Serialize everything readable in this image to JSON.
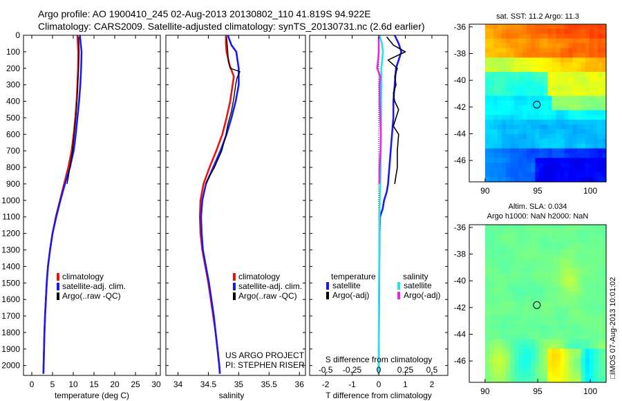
{
  "header": {
    "line1": "Argo profile: AO 1900410_245 02-Aug-2013 20130802_110 41.819S 94.922E",
    "line2": "Climatology: CARS2009. Satellite-adjusted climatology: synTS_20130731.nc (2.6d earlier)"
  },
  "footer": {
    "project": "US ARGO PROJECT",
    "pi": "PI: STEPHEN RISER",
    "credit": "□IMOS 07-Aug-2013 10:01:02"
  },
  "colors": {
    "climatology": "#ee1111",
    "satellite": "#1a1aee",
    "argo": "#000000",
    "salinity_satellite": "#22e5e5",
    "salinity_argo": "#ee22ee"
  },
  "chart_data": [
    {
      "id": "temperature",
      "type": "line",
      "xlabel": "temperature (deg C)",
      "ylabel": "",
      "xlim": [
        -2,
        31
      ],
      "ylim": [
        2060,
        0
      ],
      "xticks": [
        0,
        5,
        10,
        15,
        20,
        25,
        30
      ],
      "yticks": [
        0,
        100,
        200,
        300,
        400,
        500,
        600,
        700,
        800,
        900,
        1000,
        1100,
        1200,
        1300,
        1400,
        1500,
        1600,
        1700,
        1800,
        1900,
        2000
      ],
      "legend": {
        "placement": "lower-right",
        "entries": [
          {
            "label": "climatology",
            "color": "#ee1111"
          },
          {
            "label": "satellite-adj. clim.",
            "color": "#1a1aee"
          },
          {
            "label": "Argo(..raw -QC)",
            "color": "#000000"
          }
        ]
      },
      "series": [
        {
          "name": "climatology",
          "color": "#ee1111",
          "width": 2.6,
          "points": [
            [
              11.0,
              0
            ],
            [
              11.1,
              50
            ],
            [
              11.2,
              100
            ],
            [
              11.15,
              200
            ],
            [
              11.0,
              300
            ],
            [
              10.8,
              400
            ],
            [
              10.5,
              500
            ],
            [
              10.1,
              600
            ],
            [
              9.6,
              700
            ],
            [
              8.8,
              800
            ],
            [
              7.8,
              900
            ],
            [
              6.8,
              1000
            ],
            [
              5.8,
              1100
            ],
            [
              5.0,
              1200
            ],
            [
              4.4,
              1300
            ],
            [
              3.9,
              1400
            ],
            [
              3.6,
              1500
            ],
            [
              3.4,
              1600
            ],
            [
              3.2,
              1700
            ],
            [
              3.05,
              1800
            ],
            [
              2.95,
              1900
            ],
            [
              2.85,
              2000
            ],
            [
              2.8,
              2050
            ]
          ]
        },
        {
          "name": "satellite-adj. clim.",
          "color": "#1a1aee",
          "width": 2.6,
          "points": [
            [
              11.6,
              0
            ],
            [
              11.8,
              50
            ],
            [
              12.0,
              100
            ],
            [
              11.9,
              200
            ],
            [
              11.7,
              300
            ],
            [
              11.4,
              400
            ],
            [
              11.0,
              500
            ],
            [
              10.6,
              600
            ],
            [
              10.1,
              700
            ],
            [
              9.2,
              800
            ],
            [
              8.0,
              900
            ],
            [
              6.9,
              1000
            ],
            [
              5.9,
              1100
            ],
            [
              5.0,
              1200
            ],
            [
              4.4,
              1300
            ],
            [
              3.9,
              1400
            ],
            [
              3.6,
              1500
            ],
            [
              3.4,
              1600
            ],
            [
              3.2,
              1700
            ],
            [
              3.05,
              1800
            ],
            [
              2.95,
              1900
            ],
            [
              2.85,
              2000
            ],
            [
              2.8,
              2050
            ]
          ]
        },
        {
          "name": "Argo(..raw -QC)",
          "color": "#000000",
          "width": 1.4,
          "points": [
            [
              11.3,
              10
            ],
            [
              11.4,
              100
            ],
            [
              11.3,
              200
            ],
            [
              11.1,
              300
            ],
            [
              10.9,
              400
            ],
            [
              10.6,
              500
            ],
            [
              10.2,
              600
            ],
            [
              9.8,
              700
            ],
            [
              9.3,
              780
            ],
            [
              8.8,
              860
            ],
            [
              8.5,
              900
            ]
          ]
        }
      ]
    },
    {
      "id": "salinity",
      "type": "line",
      "xlabel": "salinity",
      "ylabel": "",
      "xlim": [
        33.8,
        36.1
      ],
      "ylim": [
        2060,
        0
      ],
      "xticks": [
        34,
        34.5,
        35,
        35.5,
        36
      ],
      "xticklabels": [
        "34",
        "34.5",
        "35",
        "35.5",
        "36"
      ],
      "legend": {
        "placement": "lower-right",
        "entries": [
          {
            "label": "climatology",
            "color": "#ee1111"
          },
          {
            "label": "satellite-adj. clim.",
            "color": "#1a1aee"
          },
          {
            "label": "Argo(..raw -QC)",
            "color": "#000000"
          }
        ]
      },
      "series": [
        {
          "name": "climatology",
          "color": "#ee1111",
          "width": 2.6,
          "points": [
            [
              34.79,
              0
            ],
            [
              34.79,
              50
            ],
            [
              34.8,
              100
            ],
            [
              34.85,
              180
            ],
            [
              34.92,
              250
            ],
            [
              34.9,
              300
            ],
            [
              34.86,
              400
            ],
            [
              34.8,
              500
            ],
            [
              34.73,
              600
            ],
            [
              34.63,
              700
            ],
            [
              34.52,
              800
            ],
            [
              34.42,
              900
            ],
            [
              34.37,
              1000
            ],
            [
              34.36,
              1100
            ],
            [
              34.37,
              1200
            ],
            [
              34.4,
              1300
            ],
            [
              34.45,
              1400
            ],
            [
              34.5,
              1500
            ],
            [
              34.54,
              1600
            ],
            [
              34.58,
              1700
            ],
            [
              34.62,
              1800
            ],
            [
              34.65,
              1900
            ],
            [
              34.68,
              2000
            ],
            [
              34.69,
              2050
            ]
          ]
        },
        {
          "name": "satellite-adj. clim.",
          "color": "#1a1aee",
          "width": 2.6,
          "points": [
            [
              34.82,
              0
            ],
            [
              34.88,
              60
            ],
            [
              34.96,
              100
            ],
            [
              34.98,
              150
            ],
            [
              35.0,
              200
            ],
            [
              35.0,
              300
            ],
            [
              34.95,
              400
            ],
            [
              34.88,
              500
            ],
            [
              34.8,
              600
            ],
            [
              34.7,
              700
            ],
            [
              34.58,
              800
            ],
            [
              34.46,
              900
            ],
            [
              34.4,
              1000
            ],
            [
              34.38,
              1100
            ],
            [
              34.39,
              1200
            ],
            [
              34.41,
              1300
            ],
            [
              34.46,
              1400
            ],
            [
              34.51,
              1500
            ],
            [
              34.55,
              1600
            ],
            [
              34.59,
              1700
            ],
            [
              34.62,
              1800
            ],
            [
              34.65,
              1900
            ],
            [
              34.68,
              2000
            ],
            [
              34.69,
              2050
            ]
          ]
        },
        {
          "name": "Argo(..raw -QC)",
          "color": "#000000",
          "width": 1.4,
          "points": [
            [
              34.8,
              10
            ],
            [
              34.82,
              100
            ],
            [
              34.83,
              160
            ],
            [
              34.86,
              200
            ],
            [
              35.02,
              220
            ],
            [
              34.97,
              260
            ],
            [
              34.95,
              300
            ],
            [
              34.92,
              380
            ],
            [
              34.88,
              460
            ],
            [
              34.82,
              540
            ],
            [
              34.78,
              620
            ],
            [
              34.72,
              700
            ],
            [
              34.6,
              800
            ],
            [
              34.48,
              880
            ],
            [
              34.46,
              900
            ]
          ]
        }
      ]
    },
    {
      "id": "difference",
      "type": "line",
      "xlabel": "T difference from climatology",
      "ylabel": "",
      "secondary_xlabel": "S difference from climatology",
      "xlim": [
        -2.6,
        2.6
      ],
      "ylim": [
        2060,
        0
      ],
      "xticks": [
        -2,
        -1,
        0,
        1,
        2
      ],
      "xticklabels": [
        "-2",
        "-1",
        "0",
        "1",
        "2"
      ],
      "sticks": [
        -0.5,
        -0.25,
        0,
        0.25,
        0.5
      ],
      "sticklabels": [
        "-0.5",
        "-0.25",
        "0",
        "0.25",
        "0.5"
      ],
      "legend": {
        "placement": "lower-center",
        "header_t": "temperature",
        "header_s": "salinity",
        "entries": [
          {
            "label": "satellite",
            "color": "#1a1aee"
          },
          {
            "label": "Argo(-adj)",
            "color": "#000000"
          },
          {
            "label": "satellite",
            "color": "#22e5e5"
          },
          {
            "label": "Argo(-adj)",
            "color": "#ee22ee"
          }
        ]
      },
      "series": [
        {
          "name": "temperature satellite",
          "color": "#1a1aee",
          "width": 2.6,
          "points": [
            [
              0.6,
              0
            ],
            [
              0.75,
              50
            ],
            [
              0.85,
              100
            ],
            [
              0.65,
              200
            ],
            [
              0.6,
              300
            ],
            [
              0.55,
              400
            ],
            [
              0.55,
              500
            ],
            [
              0.5,
              600
            ],
            [
              0.45,
              700
            ],
            [
              0.4,
              800
            ],
            [
              0.35,
              900
            ],
            [
              0.3,
              950
            ],
            [
              0.2,
              1000
            ],
            [
              0.15,
              1050
            ],
            [
              0.05,
              1100
            ],
            [
              0.03,
              1200
            ],
            [
              0.02,
              1400
            ],
            [
              0.01,
              1700
            ],
            [
              0.0,
              2050
            ]
          ]
        },
        {
          "name": "temperature Argo(-adj)",
          "color": "#000000",
          "width": 1.6,
          "points": [
            [
              0.3,
              10
            ],
            [
              0.55,
              60
            ],
            [
              1.0,
              100
            ],
            [
              0.35,
              150
            ],
            [
              0.7,
              200
            ],
            [
              0.6,
              250
            ],
            [
              0.65,
              300
            ],
            [
              0.55,
              350
            ],
            [
              0.6,
              400
            ],
            [
              0.75,
              450
            ],
            [
              0.65,
              500
            ],
            [
              0.55,
              550
            ],
            [
              0.75,
              600
            ],
            [
              0.7,
              700
            ],
            [
              0.7,
              800
            ],
            [
              0.65,
              850
            ],
            [
              0.6,
              900
            ]
          ]
        },
        {
          "name": "salinity satellite",
          "color": "#22e5e5",
          "width": 2.6,
          "points": [
            [
              0.03,
              0
            ],
            [
              0.12,
              50
            ],
            [
              0.16,
              100
            ],
            [
              0.1,
              200
            ],
            [
              0.1,
              300
            ],
            [
              0.09,
              400
            ],
            [
              0.09,
              500
            ],
            [
              0.08,
              600
            ],
            [
              0.07,
              700
            ],
            [
              0.07,
              800
            ],
            [
              0.06,
              900
            ],
            [
              0.04,
              1000
            ],
            [
              0.03,
              1100
            ],
            [
              0.02,
              1300
            ],
            [
              0.01,
              1600
            ],
            [
              0.0,
              2050
            ]
          ]
        },
        {
          "name": "salinity Argo(-adj)",
          "color": "#ee22ee",
          "width": 2.6,
          "points": [
            [
              0.0,
              10
            ],
            [
              0.0,
              100
            ],
            [
              -0.02,
              150
            ],
            [
              -0.06,
              200
            ],
            [
              -0.01,
              220
            ],
            [
              0.06,
              250
            ],
            [
              0.03,
              300
            ],
            [
              0.04,
              400
            ],
            [
              0.06,
              500
            ],
            [
              0.08,
              600
            ],
            [
              0.07,
              700
            ],
            [
              0.03,
              800
            ],
            [
              0.02,
              900
            ]
          ]
        }
      ]
    },
    {
      "id": "sst_map",
      "type": "heatmap",
      "title": "sat. SST: 11.2  Argo: 11.3",
      "xlim": [
        88.5,
        101.5
      ],
      "ylim": [
        -47.6,
        -35.8
      ],
      "xticks": [
        90,
        95,
        100
      ],
      "yticks": [
        -36,
        -38,
        -40,
        -42,
        -44,
        -46
      ],
      "data_xlim": [
        90.0,
        101.5
      ],
      "colormap": "jet",
      "argo_position": [
        94.922,
        -41.819
      ]
    },
    {
      "id": "sla_map",
      "type": "heatmap",
      "title": "Altim. SLA: 0.034",
      "subtitle": "Argo h1000: NaN h2000: NaN",
      "xlim": [
        88.5,
        101.5
      ],
      "ylim": [
        -47.6,
        -35.8
      ],
      "xticks": [
        90,
        95,
        100
      ],
      "yticks": [
        -36,
        -38,
        -40,
        -42,
        -44,
        -46
      ],
      "data_xlim": [
        90.0,
        101.5
      ],
      "colormap": "jet",
      "argo_position": [
        94.922,
        -41.819
      ]
    }
  ]
}
